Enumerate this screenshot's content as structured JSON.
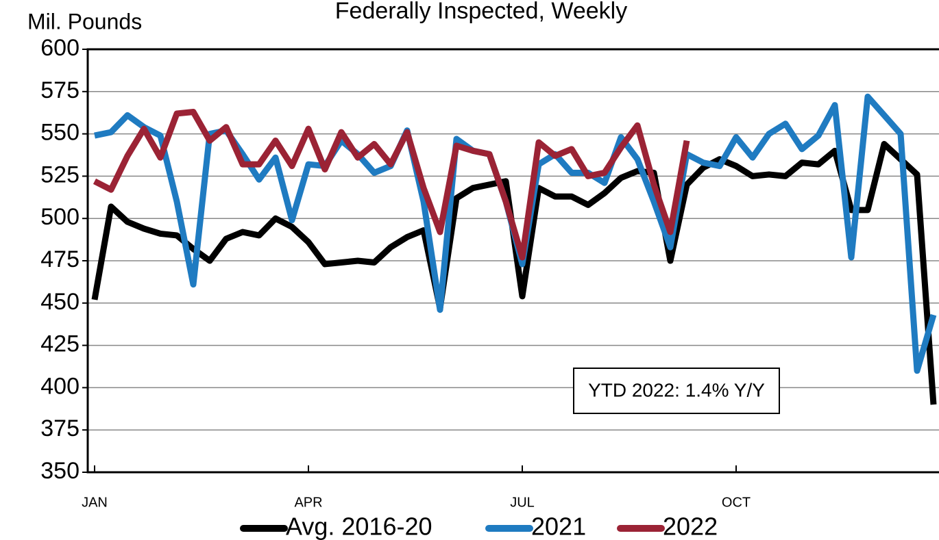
{
  "chart_data": {
    "type": "line",
    "title": "Federally Inspected, Weekly",
    "y_label": "Mil. Pounds",
    "annotation": "YTD 2022: 1.4% Y/Y",
    "categories": [
      "JAN",
      null,
      null,
      null,
      null,
      null,
      null,
      null,
      null,
      null,
      null,
      null,
      null,
      "APR",
      null,
      null,
      null,
      null,
      null,
      null,
      null,
      null,
      null,
      null,
      null,
      null,
      "JUL",
      null,
      null,
      null,
      null,
      null,
      null,
      null,
      null,
      null,
      null,
      null,
      null,
      "OCT",
      null,
      null,
      null,
      null,
      null,
      null,
      null,
      null,
      null,
      null,
      null,
      null
    ],
    "series": [
      {
        "name": "Avg. 2016-20",
        "color": "#000000",
        "values": [
          452,
          507,
          498,
          494,
          491,
          490,
          482,
          475,
          488,
          492,
          490,
          500,
          495,
          486,
          473,
          474,
          475,
          474,
          483,
          489,
          493,
          447,
          512,
          518,
          520,
          522,
          454,
          518,
          513,
          513,
          508,
          515,
          524,
          528,
          527,
          475,
          520,
          530,
          535,
          531,
          525,
          526,
          525,
          533,
          532,
          540,
          505,
          505,
          544,
          535,
          526,
          390
        ]
      },
      {
        "name": "2021",
        "color": "#1f7bc1",
        "values": [
          549,
          551,
          561,
          554,
          549,
          510,
          461,
          550,
          552,
          538,
          523,
          536,
          499,
          532,
          531,
          546,
          538,
          527,
          531,
          552,
          510,
          446,
          547,
          540,
          538,
          510,
          473,
          532,
          538,
          527,
          527,
          521,
          548,
          535,
          510,
          483,
          538,
          533,
          531,
          548,
          536,
          550,
          556,
          541,
          549,
          567,
          477,
          572,
          561,
          550,
          410,
          443
        ]
      },
      {
        "name": "2022",
        "color": "#9b2335",
        "values": [
          522,
          517,
          537,
          553,
          536,
          562,
          563,
          546,
          554,
          532,
          532,
          546,
          531,
          553,
          529,
          551,
          536,
          544,
          532,
          551,
          518,
          492,
          543,
          540,
          538,
          510,
          477,
          545,
          537,
          541,
          525,
          527,
          542,
          555,
          520,
          492,
          546,
          null,
          null,
          null,
          null,
          null,
          null,
          null,
          null,
          null,
          null,
          null,
          null,
          null,
          null,
          null
        ]
      }
    ],
    "ylim": [
      350,
      600
    ],
    "yticks": [
      350,
      375,
      400,
      425,
      450,
      475,
      500,
      525,
      550,
      575,
      600
    ],
    "grid": true
  }
}
